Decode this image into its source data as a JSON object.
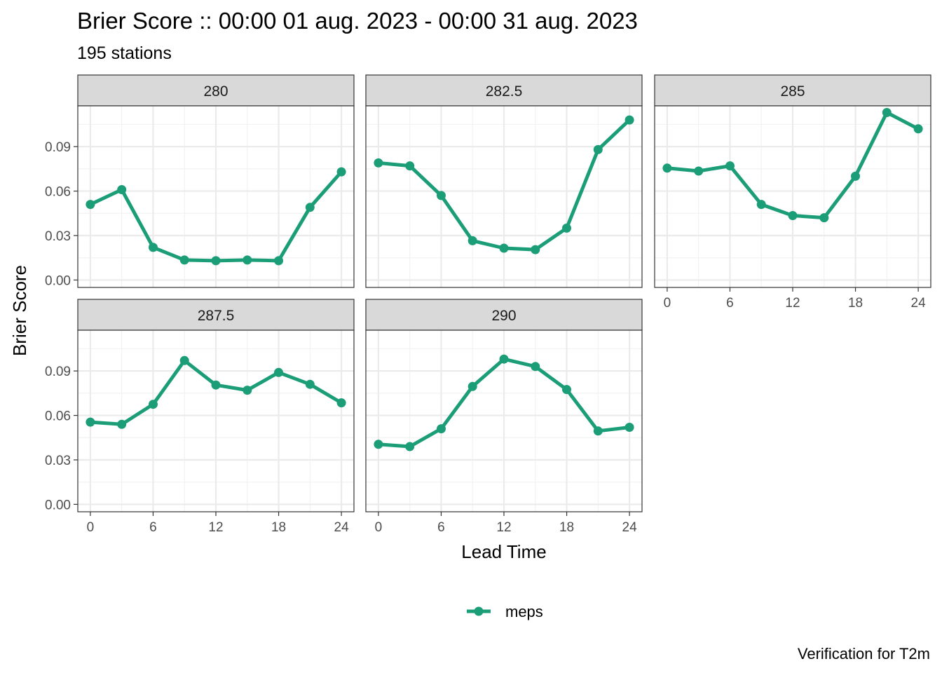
{
  "chart_data": {
    "type": "line",
    "title": "Brier Score :: 00:00 01 aug. 2023 - 00:00 31 aug. 2023",
    "subtitle": "195 stations",
    "xlabel": "Lead Time",
    "ylabel": "Brier Score",
    "caption": "Verification for T2m",
    "x": [
      0,
      3,
      6,
      9,
      12,
      15,
      18,
      21,
      24
    ],
    "xticks": [
      "0",
      "6",
      "12",
      "18",
      "24"
    ],
    "yticks": [
      "0.00",
      "0.03",
      "0.06",
      "0.09"
    ],
    "xlim": [
      -1.2,
      25.2
    ],
    "ylim": [
      -0.005,
      0.1175
    ],
    "grid": true,
    "legend": {
      "position": "bottom",
      "entries": [
        "meps"
      ]
    },
    "series_color": "#1b9e77",
    "panels": [
      {
        "label": "280",
        "series": [
          {
            "name": "meps",
            "values": [
              0.051,
              0.061,
              0.022,
              0.0135,
              0.013,
              0.0135,
              0.013,
              0.049,
              0.073
            ]
          }
        ]
      },
      {
        "label": "282.5",
        "series": [
          {
            "name": "meps",
            "values": [
              0.079,
              0.077,
              0.057,
              0.0265,
              0.0215,
              0.0205,
              0.035,
              0.088,
              0.108
            ]
          }
        ]
      },
      {
        "label": "285",
        "series": [
          {
            "name": "meps",
            "values": [
              0.0755,
              0.0735,
              0.077,
              0.051,
              0.0435,
              0.042,
              0.07,
              0.113,
              0.102
            ]
          }
        ]
      },
      {
        "label": "287.5",
        "series": [
          {
            "name": "meps",
            "values": [
              0.0555,
              0.054,
              0.0675,
              0.097,
              0.0805,
              0.077,
              0.089,
              0.081,
              0.0685
            ]
          }
        ]
      },
      {
        "label": "290",
        "series": [
          {
            "name": "meps",
            "values": [
              0.0405,
              0.039,
              0.051,
              0.0795,
              0.098,
              0.093,
              0.0775,
              0.0495,
              0.052
            ]
          }
        ]
      }
    ]
  }
}
